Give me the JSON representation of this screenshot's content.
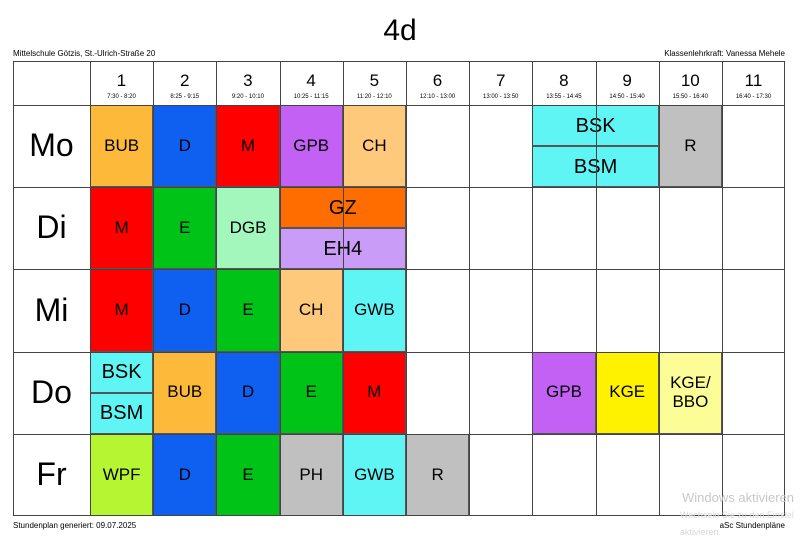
{
  "title": "4d",
  "school": "Mittelschule Götzis, St.-Ulrich-Straße 20",
  "teacher": "Klassenlehrkraft: Vanessa Mehele",
  "footer_left": "Stundenplan generiert: 09.07.2025",
  "footer_right": "aSc Stundenpläne",
  "watermark": {
    "line1": "Windows aktivieren",
    "line2": "Wechseln Sie zu den Einstel",
    "line3": "aktivieren."
  },
  "periods": [
    {
      "num": "1",
      "time": "7:30 - 8:20"
    },
    {
      "num": "2",
      "time": "8:25 - 9:15"
    },
    {
      "num": "3",
      "time": "9:20 - 10:10"
    },
    {
      "num": "4",
      "time": "10:25 - 11:15"
    },
    {
      "num": "5",
      "time": "11:20 - 12:10"
    },
    {
      "num": "6",
      "time": "12:10 - 13:00"
    },
    {
      "num": "7",
      "time": "13:00 - 13:50"
    },
    {
      "num": "8",
      "time": "13:55 - 14:45"
    },
    {
      "num": "9",
      "time": "14:50 - 15:40"
    },
    {
      "num": "10",
      "time": "15:50 - 16:40"
    },
    {
      "num": "11",
      "time": "16:40 - 17:30"
    }
  ],
  "days": [
    "Mo",
    "Di",
    "Mi",
    "Do",
    "Fr"
  ],
  "colors": {
    "orange": "#fdb93a",
    "blue": "#0f60f0",
    "red": "#ff0000",
    "purple": "#c361f5",
    "peach": "#fec97b",
    "cyan": "#60f5f5",
    "gray": "#c0c0c0",
    "green": "#00c317",
    "mint": "#a3f7bd",
    "darkorange": "#ff6c00",
    "lavender": "#c89cf7",
    "lime": "#b6f532",
    "yellow": "#fff200",
    "paleyellow": "#fdfd97"
  },
  "lessons": [
    {
      "text": "BUB",
      "day": 0,
      "period": 1,
      "span": 1,
      "part": 0,
      "parts": 1,
      "color": "orange"
    },
    {
      "text": "D",
      "day": 0,
      "period": 2,
      "span": 1,
      "part": 0,
      "parts": 1,
      "color": "blue"
    },
    {
      "text": "M",
      "day": 0,
      "period": 3,
      "span": 1,
      "part": 0,
      "parts": 1,
      "color": "red"
    },
    {
      "text": "GPB",
      "day": 0,
      "period": 4,
      "span": 1,
      "part": 0,
      "parts": 1,
      "color": "purple"
    },
    {
      "text": "CH",
      "day": 0,
      "period": 5,
      "span": 1,
      "part": 0,
      "parts": 1,
      "color": "peach"
    },
    {
      "text": "BSK",
      "day": 0,
      "period": 8,
      "span": 2,
      "part": 0,
      "parts": 2,
      "color": "cyan"
    },
    {
      "text": "BSM",
      "day": 0,
      "period": 8,
      "span": 2,
      "part": 1,
      "parts": 2,
      "color": "cyan"
    },
    {
      "text": "R",
      "day": 0,
      "period": 10,
      "span": 1,
      "part": 0,
      "parts": 1,
      "color": "gray"
    },
    {
      "text": "M",
      "day": 1,
      "period": 1,
      "span": 1,
      "part": 0,
      "parts": 1,
      "color": "red"
    },
    {
      "text": "E",
      "day": 1,
      "period": 2,
      "span": 1,
      "part": 0,
      "parts": 1,
      "color": "green"
    },
    {
      "text": "DGB",
      "day": 1,
      "period": 3,
      "span": 1,
      "part": 0,
      "parts": 1,
      "color": "mint"
    },
    {
      "text": "GZ",
      "day": 1,
      "period": 4,
      "span": 2,
      "part": 0,
      "parts": 2,
      "color": "darkorange"
    },
    {
      "text": "EH4",
      "day": 1,
      "period": 4,
      "span": 2,
      "part": 1,
      "parts": 2,
      "color": "lavender"
    },
    {
      "text": "M",
      "day": 2,
      "period": 1,
      "span": 1,
      "part": 0,
      "parts": 1,
      "color": "red"
    },
    {
      "text": "D",
      "day": 2,
      "period": 2,
      "span": 1,
      "part": 0,
      "parts": 1,
      "color": "blue"
    },
    {
      "text": "E",
      "day": 2,
      "period": 3,
      "span": 1,
      "part": 0,
      "parts": 1,
      "color": "green"
    },
    {
      "text": "CH",
      "day": 2,
      "period": 4,
      "span": 1,
      "part": 0,
      "parts": 1,
      "color": "peach"
    },
    {
      "text": "GWB",
      "day": 2,
      "period": 5,
      "span": 1,
      "part": 0,
      "parts": 1,
      "color": "cyan"
    },
    {
      "text": "BSK",
      "day": 3,
      "period": 1,
      "span": 1,
      "part": 0,
      "parts": 2,
      "color": "cyan"
    },
    {
      "text": "BSM",
      "day": 3,
      "period": 1,
      "span": 1,
      "part": 1,
      "parts": 2,
      "color": "cyan"
    },
    {
      "text": "BUB",
      "day": 3,
      "period": 2,
      "span": 1,
      "part": 0,
      "parts": 1,
      "color": "orange"
    },
    {
      "text": "D",
      "day": 3,
      "period": 3,
      "span": 1,
      "part": 0,
      "parts": 1,
      "color": "blue"
    },
    {
      "text": "E",
      "day": 3,
      "period": 4,
      "span": 1,
      "part": 0,
      "parts": 1,
      "color": "green"
    },
    {
      "text": "M",
      "day": 3,
      "period": 5,
      "span": 1,
      "part": 0,
      "parts": 1,
      "color": "red"
    },
    {
      "text": "GPB",
      "day": 3,
      "period": 8,
      "span": 1,
      "part": 0,
      "parts": 1,
      "color": "purple"
    },
    {
      "text": "KGE",
      "day": 3,
      "period": 9,
      "span": 1,
      "part": 0,
      "parts": 1,
      "color": "yellow"
    },
    {
      "text": "KGE/\nBBO",
      "day": 3,
      "period": 10,
      "span": 1,
      "part": 0,
      "parts": 1,
      "color": "paleyellow"
    },
    {
      "text": "WPF",
      "day": 4,
      "period": 1,
      "span": 1,
      "part": 0,
      "parts": 1,
      "color": "lime"
    },
    {
      "text": "D",
      "day": 4,
      "period": 2,
      "span": 1,
      "part": 0,
      "parts": 1,
      "color": "blue"
    },
    {
      "text": "E",
      "day": 4,
      "period": 3,
      "span": 1,
      "part": 0,
      "parts": 1,
      "color": "green"
    },
    {
      "text": "PH",
      "day": 4,
      "period": 4,
      "span": 1,
      "part": 0,
      "parts": 1,
      "color": "gray"
    },
    {
      "text": "GWB",
      "day": 4,
      "period": 5,
      "span": 1,
      "part": 0,
      "parts": 1,
      "color": "cyan"
    },
    {
      "text": "R",
      "day": 4,
      "period": 6,
      "span": 1,
      "part": 0,
      "parts": 1,
      "color": "gray"
    }
  ]
}
